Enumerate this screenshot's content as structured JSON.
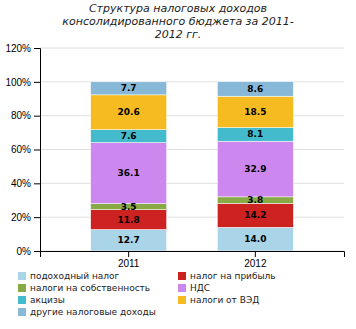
{
  "chart_data": {
    "type": "bar",
    "stacked": true,
    "title": "Структура налоговых доходов\nконсолидированного бюджета за 2011-\n2012 гг.",
    "categories": [
      "2011",
      "2012"
    ],
    "series": [
      {
        "name": "подоходный налог",
        "color": "#aad4e8",
        "values": [
          12.7,
          14.0
        ],
        "value_labels": [
          "12.7",
          "14.0"
        ]
      },
      {
        "name": "налог на прибыль",
        "color": "#cc2222",
        "values": [
          11.8,
          14.2
        ],
        "value_labels": [
          "11.8",
          "14.2"
        ]
      },
      {
        "name": "налоги на собственность",
        "color": "#88aa44",
        "values": [
          3.5,
          3.8
        ],
        "value_labels": [
          "3.5",
          "3.8"
        ]
      },
      {
        "name": "НДС",
        "color": "#cc88ee",
        "values": [
          36.1,
          32.9
        ],
        "value_labels": [
          "36.1",
          "32.9"
        ]
      },
      {
        "name": "акцизы",
        "color": "#44bbcc",
        "values": [
          7.6,
          8.1
        ],
        "value_labels": [
          "7.6",
          "8.1"
        ]
      },
      {
        "name": "налоги от ВЭД",
        "color": "#f5bb20",
        "values": [
          20.6,
          18.5
        ],
        "value_labels": [
          "20.6",
          "18.5"
        ]
      },
      {
        "name": "другие налоговые доходы",
        "color": "#88b8d8",
        "values": [
          7.7,
          8.6
        ],
        "value_labels": [
          "7.7",
          "8.6"
        ]
      }
    ],
    "ylim": [
      0,
      120
    ],
    "yticks": [
      {
        "value": 0,
        "label": "0%"
      },
      {
        "value": 20,
        "label": "20%"
      },
      {
        "value": 40,
        "label": "40%"
      },
      {
        "value": 60,
        "label": "60%"
      },
      {
        "value": 80,
        "label": "80%"
      },
      {
        "value": 100,
        "label": "100%"
      },
      {
        "value": 120,
        "label": "120%"
      }
    ],
    "grid": true,
    "data_labels": true,
    "legend": "bottom"
  }
}
